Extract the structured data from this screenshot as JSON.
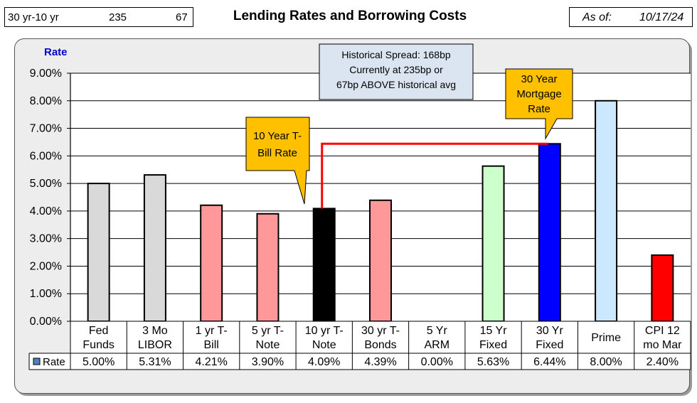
{
  "header": {
    "spread_label": "30 yr-10 yr",
    "spread_current_bp": "235",
    "spread_above_bp": "67",
    "title": "Lending Rates and Borrowing Costs",
    "asof_label": "As of:",
    "asof_date": "10/17/24"
  },
  "chart_data": {
    "type": "bar",
    "title": "Lending Rates and Borrowing Costs",
    "ylabel": "Rate",
    "xlabel": "",
    "ylim": [
      0,
      9
    ],
    "yticks": [
      "0.00%",
      "1.00%",
      "2.00%",
      "3.00%",
      "4.00%",
      "5.00%",
      "6.00%",
      "7.00%",
      "8.00%",
      "9.00%"
    ],
    "categories": [
      [
        "Fed",
        "Funds"
      ],
      [
        "3 Mo",
        "LIBOR"
      ],
      [
        "1 yr  T-",
        "Bill"
      ],
      [
        "5 yr T-",
        "Note"
      ],
      [
        "10 yr T-",
        "Note"
      ],
      [
        "30 yr T-",
        "Bonds"
      ],
      [
        "5 Yr",
        "ARM"
      ],
      [
        "15 Yr",
        "Fixed"
      ],
      [
        "30 Yr",
        "Fixed"
      ],
      [
        "Prime"
      ],
      [
        "CPI 12",
        "mo Mar"
      ]
    ],
    "series": [
      {
        "name": "Rate",
        "values": [
          5.0,
          5.31,
          4.21,
          3.9,
          4.09,
          4.39,
          0.0,
          5.63,
          6.44,
          8.0,
          2.4
        ],
        "value_labels": [
          "5.00%",
          "5.31%",
          "4.21%",
          "3.90%",
          "4.09%",
          "4.39%",
          "0.00%",
          "5.63%",
          "6.44%",
          "8.00%",
          "2.40%"
        ]
      }
    ],
    "bar_colors": [
      "#d9d9d9",
      "#d9d9d9",
      "#ff9999",
      "#ff9999",
      "#000000",
      "#ff9999",
      "#ff9999",
      "#ccffcc",
      "#0000ff",
      "#cce8ff",
      "#ff0000"
    ],
    "legend_marker_color": "#4f81bd",
    "grid": true,
    "data_table": true,
    "connector_color": "#ff0000",
    "annotations": {
      "spread_text": [
        "Historical Spread: 168bp",
        "Currently at 235bp  or",
        "67bp ABOVE historical avg"
      ],
      "callout_10yr": [
        "10 Year T-",
        "Bill Rate"
      ],
      "callout_30yr": [
        "30 Year",
        "Mortgage",
        "Rate"
      ]
    }
  }
}
